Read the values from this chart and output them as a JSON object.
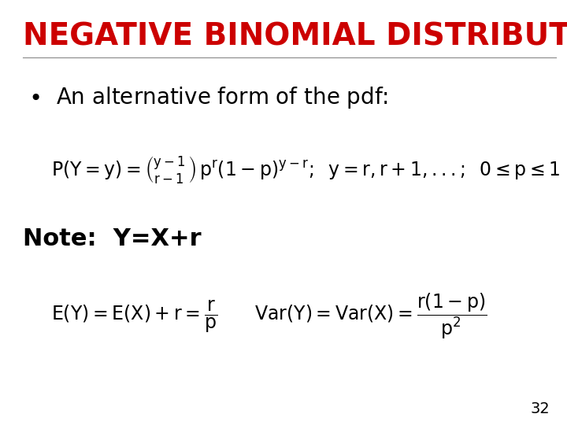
{
  "title": "NEGATIVE BINOMIAL DISTRIBUTION",
  "title_color": "#CC0000",
  "title_fontsize": 28,
  "background_color": "#ffffff",
  "bullet_text": "An alternative form of the pdf:",
  "bullet_fontsize": 20,
  "formula1_fontsize": 17,
  "note_text": "Note:  Y=X+r",
  "note_fontsize": 22,
  "formula2_fontsize": 17,
  "page_number": "32",
  "page_fontsize": 14
}
